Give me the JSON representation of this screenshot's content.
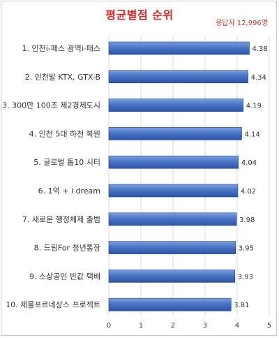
{
  "chart_data": {
    "type": "bar",
    "orientation": "horizontal",
    "title": "평균별점 순위",
    "annotation": {
      "label": "응답자",
      "value": "12,996명"
    },
    "categories": [
      "1. 인천i-패스 광역i-패스",
      "2. 인천발 KTX, GTX-B",
      "3. 300만 100조 제2경제도시",
      "4. 인천 5대 하천 복원",
      "5. 글로벌 톱10 시티",
      "6. 1억 + i dream",
      "7. 새로운 행정체제 출범",
      "8. 드림For 청년통장",
      "9. 소상공인 반값 택배",
      "10. 제물포르네상스 프로젝트"
    ],
    "values": [
      4.38,
      4.34,
      4.19,
      4.14,
      4.04,
      4.02,
      3.98,
      3.95,
      3.93,
      3.81
    ],
    "value_labels": [
      "4.38",
      "4.34",
      "4.19",
      "4.14",
      "4.04",
      "4.02",
      "3.98",
      "3.95",
      "3.93",
      "3.81"
    ],
    "xlim": [
      0,
      5
    ],
    "xticks": [
      "0",
      "1",
      "2",
      "3",
      "4",
      "5"
    ],
    "xlabel": "",
    "ylabel": "",
    "grid": true,
    "colors": {
      "bar_top": "#7ba1e0",
      "bar_bottom": "#2e55a8",
      "bar_edge": "#1f3f85",
      "grid": "#d9d9d9",
      "title": "#e0262a"
    }
  }
}
